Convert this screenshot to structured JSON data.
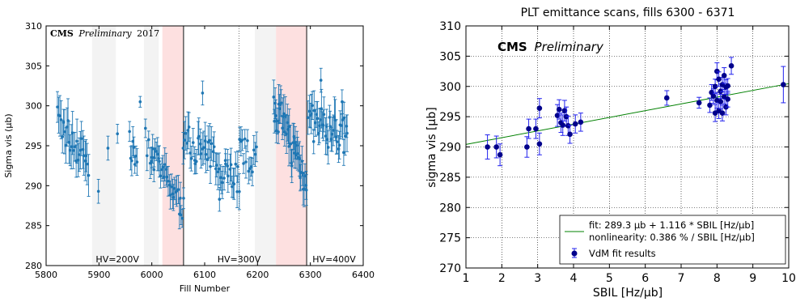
{
  "charts": [
    {
      "type": "scatter",
      "title": "",
      "xlabel": "Fill Number",
      "ylabel": "Sigma vis (μb)",
      "xlim": [
        5800,
        6400
      ],
      "ylim": [
        280,
        310
      ],
      "xticks": [
        "5800",
        "5900",
        "6000",
        "6100",
        "6200",
        "6300",
        "6400"
      ],
      "yticks": [
        "280",
        "285",
        "290",
        "295",
        "300",
        "305",
        "310"
      ],
      "xtick_values": [
        5800,
        5900,
        6000,
        6100,
        6200,
        6300,
        6400
      ],
      "ytick_values": [
        280,
        285,
        290,
        295,
        300,
        305,
        310
      ],
      "grid": false,
      "cms_label": {
        "bold": "CMS",
        "italic": "Preliminary",
        "year": "2017"
      },
      "hv_labels": [
        {
          "text": "HV=200V",
          "x": 5935
        },
        {
          "text": "HV=300V",
          "x": 6165
        },
        {
          "text": "HV=400V",
          "x": 6345
        }
      ],
      "gray_bands": [
        [
          5887,
          5932
        ],
        [
          5985,
          6013
        ],
        [
          6195,
          6235
        ]
      ],
      "pink_bands": [
        [
          6020,
          6059
        ],
        [
          6235,
          6293
        ]
      ],
      "solid_vlines": [
        6060,
        6293
      ],
      "dotted_vlines": [
        6165
      ],
      "colors": {
        "points": "#1f77b4",
        "gray_band": "#f3f3f3",
        "pink_band": "#fde0e0"
      },
      "clusters": [
        {
          "x_from": 5822,
          "x_to": 5880,
          "y_from": 298,
          "y_to": 293,
          "n": 28,
          "err": 2.2,
          "jitter": 2.2
        },
        {
          "x_from": 5935,
          "x_to": 5937,
          "y_from": 296.5,
          "y_to": 296.5,
          "n": 1,
          "err": 1.5,
          "jitter": 0
        },
        {
          "x_from": 5958,
          "x_to": 5972,
          "y_from": 295,
          "y_to": 293,
          "n": 8,
          "err": 1.5,
          "jitter": 1.8
        },
        {
          "x_from": 5978,
          "x_to": 5980,
          "y_from": 300.5,
          "y_to": 300.5,
          "n": 1,
          "err": 0.8,
          "jitter": 0
        },
        {
          "x_from": 5988,
          "x_to": 6000,
          "y_from": 296,
          "y_to": 293,
          "n": 5,
          "err": 1.5,
          "jitter": 1.5
        },
        {
          "x_from": 6000,
          "x_to": 6060,
          "y_from": 294,
          "y_to": 287,
          "n": 30,
          "err": 1.6,
          "jitter": 1.6
        },
        {
          "x_from": 6060,
          "x_to": 6165,
          "y_from": 296,
          "y_to": 291,
          "n": 48,
          "err": 1.8,
          "jitter": 2.2
        },
        {
          "x_from": 6166,
          "x_to": 6198,
          "y_from": 294.5,
          "y_to": 293,
          "n": 14,
          "err": 1.6,
          "jitter": 2.0
        },
        {
          "x_from": 6230,
          "x_to": 6293,
          "y_from": 300,
          "y_to": 291,
          "n": 42,
          "err": 2.0,
          "jitter": 2.6
        },
        {
          "x_from": 6296,
          "x_to": 6370,
          "y_from": 298,
          "y_to": 296,
          "n": 40,
          "err": 2.0,
          "jitter": 2.4
        }
      ],
      "extra_points": [
        [
          5899,
          289.3
        ],
        [
          5917,
          294.7
        ],
        [
          6004,
          292
        ],
        [
          6096,
          301.6
        ],
        [
          6128,
          288.3
        ],
        [
          6320,
          303.2
        ],
        [
          6360,
          300.5
        ]
      ]
    },
    {
      "type": "scatter",
      "title": "PLT emittance scans, fills 6300 - 6371",
      "xlabel": "SBIL [Hz/μb]",
      "ylabel": "sigma vis [μb]",
      "xlim": [
        1,
        10
      ],
      "ylim": [
        270,
        310
      ],
      "xticks": [
        "1",
        "2",
        "3",
        "4",
        "5",
        "6",
        "7",
        "8",
        "9",
        "10"
      ],
      "yticks": [
        "270",
        "275",
        "280",
        "285",
        "290",
        "295",
        "300",
        "305",
        "310"
      ],
      "xtick_values": [
        1,
        2,
        3,
        4,
        5,
        6,
        7,
        8,
        9,
        10
      ],
      "ytick_values": [
        270,
        275,
        280,
        285,
        290,
        295,
        300,
        305,
        310
      ],
      "grid": true,
      "cms_label": {
        "bold": "CMS",
        "italic": "Preliminary"
      },
      "fit": {
        "intercept": 289.3,
        "slope": 1.116,
        "color": "#008000"
      },
      "legend": {
        "fit": "fit: 289.3 μb + 1.116 * SBIL [Hz/μb]",
        "nonlinearity": "nonlinearity: 0.386 % / SBIL [Hz/μb]",
        "points": "VdM fit results",
        "placement": "lower-right"
      },
      "colors": {
        "points": "#00008b",
        "errors": "#2222ee"
      },
      "points": [
        [
          1.6,
          290.0,
          2.0
        ],
        [
          1.85,
          290.0,
          1.8
        ],
        [
          1.95,
          288.7,
          1.8
        ],
        [
          2.7,
          290.0,
          1.7
        ],
        [
          2.75,
          293.0,
          1.6
        ],
        [
          2.95,
          293.0,
          1.6
        ],
        [
          3.05,
          290.5,
          1.8
        ],
        [
          3.05,
          296.4,
          1.6
        ],
        [
          3.55,
          295.2,
          1.8
        ],
        [
          3.6,
          296.2,
          1.6
        ],
        [
          3.65,
          294.0,
          1.6
        ],
        [
          3.7,
          293.6,
          1.7
        ],
        [
          3.75,
          296.0,
          1.7
        ],
        [
          3.8,
          295.0,
          1.6
        ],
        [
          3.85,
          293.5,
          1.6
        ],
        [
          3.9,
          292.1,
          1.5
        ],
        [
          4.05,
          293.8,
          1.5
        ],
        [
          4.2,
          294.1,
          1.5
        ],
        [
          6.6,
          298.1,
          1.2
        ],
        [
          7.5,
          297.3,
          0.9
        ],
        [
          7.8,
          296.9,
          1.2
        ],
        [
          7.85,
          299.0,
          1.3
        ],
        [
          7.9,
          298.4,
          1.2
        ],
        [
          7.95,
          295.6,
          1.4
        ],
        [
          7.95,
          300.0,
          1.2
        ],
        [
          8.0,
          302.5,
          1.4
        ],
        [
          8.0,
          297.7,
          1.3
        ],
        [
          8.05,
          301.2,
          1.2
        ],
        [
          8.05,
          296.0,
          1.3
        ],
        [
          8.1,
          299.2,
          1.2
        ],
        [
          8.1,
          297.5,
          1.2
        ],
        [
          8.15,
          300.3,
          1.2
        ],
        [
          8.15,
          295.6,
          1.3
        ],
        [
          8.2,
          298.3,
          1.2
        ],
        [
          8.2,
          301.8,
          1.3
        ],
        [
          8.25,
          299.9,
          1.2
        ],
        [
          8.25,
          296.6,
          1.3
        ],
        [
          8.3,
          300.1,
          1.2
        ],
        [
          8.3,
          297.9,
          1.3
        ],
        [
          8.4,
          303.4,
          1.4
        ],
        [
          9.85,
          300.3,
          3.0
        ]
      ]
    }
  ]
}
